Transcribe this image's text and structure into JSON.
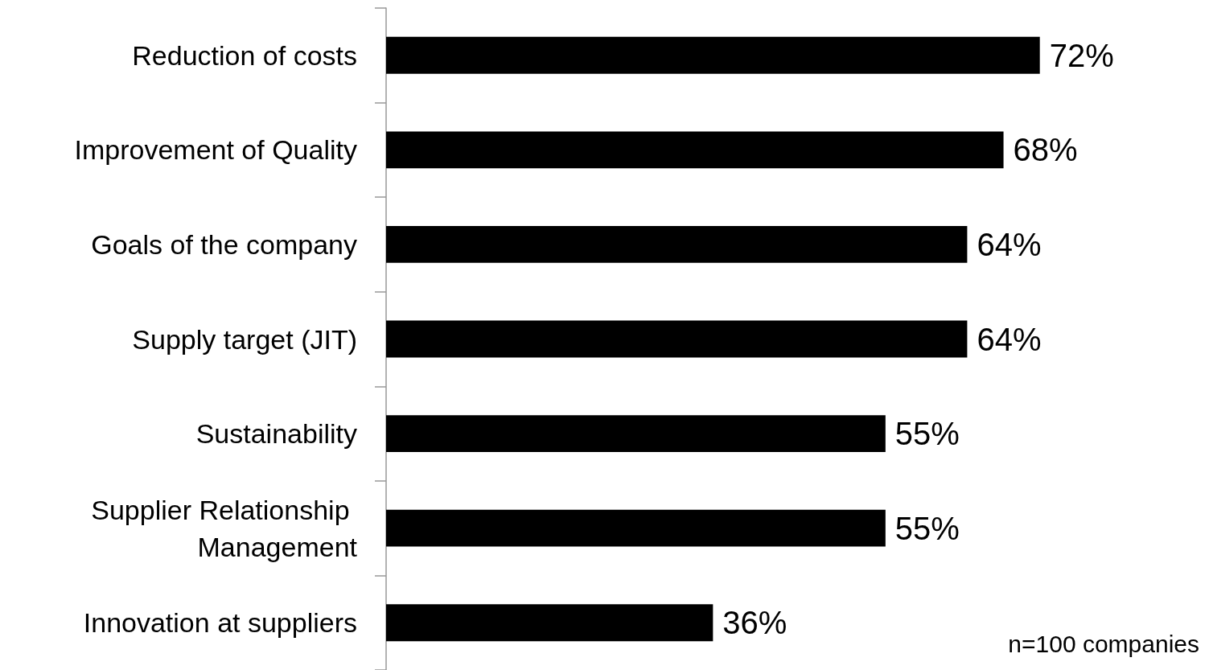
{
  "chart_data": {
    "type": "bar",
    "orientation": "horizontal",
    "categories": [
      "Reduction of costs",
      "Improvement of Quality",
      "Goals of the company",
      "Supply target (JIT)",
      "Sustainability",
      "Supplier Relationship Management",
      "Innovation at suppliers"
    ],
    "values": [
      72,
      68,
      64,
      64,
      55,
      55,
      36
    ],
    "value_labels": [
      "72%",
      "68%",
      "64%",
      "64%",
      "55%",
      "55%",
      "36%"
    ],
    "color": "#000000",
    "annotations": [
      "n=100 companies"
    ]
  }
}
